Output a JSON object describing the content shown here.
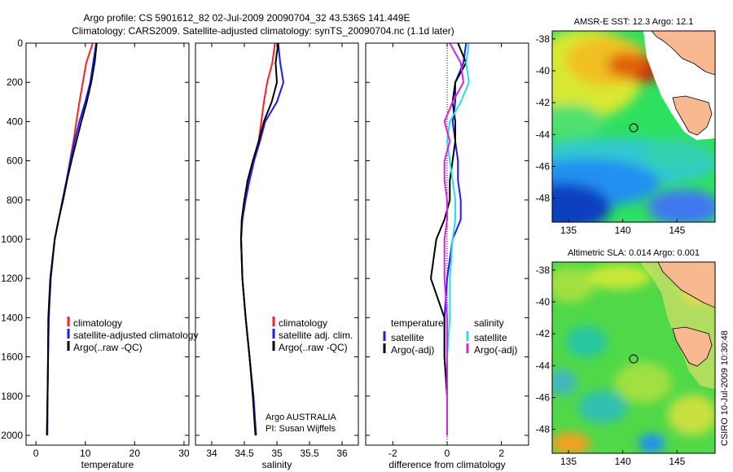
{
  "title_line1": "Argo profile: CS 5901612_82 02-Jul-2009 20090704_32 43.536S 141.449E",
  "title_line2": "Climatology: CARS2009. Satellite-adjusted climatology: synTS_20090704.nc (1.1d later)",
  "credit": "CSIRO 10-Jul-2009 10:30:48",
  "colors": {
    "climatology": "#ff2020",
    "satellite": "#1a1aff",
    "argo": "#000000",
    "cyan": "#22e0f0",
    "magenta": "#e020e0",
    "land": "#f8b990"
  },
  "chart_data": [
    {
      "type": "line",
      "xlabel": "temperature",
      "xlim": [
        -2,
        31
      ],
      "xticks": [
        0,
        10,
        20,
        30
      ],
      "ylim": [
        2050,
        0
      ],
      "yticks": [
        0,
        200,
        400,
        600,
        800,
        1000,
        1200,
        1400,
        1600,
        1800,
        2000
      ],
      "legend": {
        "position": "lower-right",
        "entries": [
          "climatology",
          "satellite-adjusted climatology",
          "Argo(..raw -QC)"
        ]
      },
      "series": [
        {
          "name": "climatology",
          "color": "#ff2020",
          "x": [
            11.5,
            10.2,
            9.5,
            8.8,
            8.2,
            7.6,
            6.9,
            6.2,
            5.4,
            4.6,
            3.8,
            3.0,
            2.6,
            2.4,
            2.3
          ],
          "y": [
            0,
            100,
            200,
            300,
            400,
            500,
            600,
            700,
            800,
            900,
            1000,
            1200,
            1400,
            1700,
            2000
          ]
        },
        {
          "name": "satellite-adjusted climatology",
          "color": "#1a1aff",
          "x": [
            12.2,
            11.6,
            11.0,
            10.0,
            8.8,
            7.8,
            7.0,
            6.2,
            5.4,
            4.6,
            3.8,
            3.0,
            2.6,
            2.4,
            2.3
          ],
          "y": [
            0,
            100,
            200,
            300,
            400,
            500,
            600,
            700,
            800,
            900,
            1000,
            1200,
            1400,
            1700,
            2000
          ]
        },
        {
          "name": "Argo(..raw -QC)",
          "color": "#000000",
          "x": [
            12.3,
            11.9,
            11.2,
            10.3,
            9.2,
            8.2,
            7.2,
            6.3,
            5.5,
            4.6,
            3.8,
            2.9,
            2.5,
            2.4,
            2.2
          ],
          "y": [
            0,
            100,
            200,
            300,
            400,
            500,
            600,
            700,
            800,
            900,
            1000,
            1200,
            1400,
            1700,
            2000
          ]
        }
      ]
    },
    {
      "type": "line",
      "xlabel": "salinity",
      "xlim": [
        33.75,
        36.25
      ],
      "xticks": [
        34,
        34.5,
        35,
        35.5,
        36
      ],
      "ylim": [
        2050,
        0
      ],
      "legend": {
        "position": "lower-right",
        "entries": [
          "climatology",
          "satellite adj. clim.",
          "Argo(..raw -QC)"
        ]
      },
      "annotations": [
        "Argo AUSTRALIA",
        "PI: Susan Wijffels"
      ],
      "series": [
        {
          "name": "climatology",
          "color": "#ff2020",
          "x": [
            34.97,
            34.93,
            34.85,
            34.8,
            34.76,
            34.72,
            34.64,
            34.57,
            34.5,
            34.46,
            34.45,
            34.47,
            34.52,
            34.58,
            34.64,
            34.68
          ],
          "y": [
            0,
            100,
            200,
            300,
            400,
            500,
            600,
            700,
            800,
            900,
            1000,
            1200,
            1400,
            1600,
            1800,
            2000
          ]
        },
        {
          "name": "satellite adj. clim.",
          "color": "#1a1aff",
          "x": [
            35.02,
            35.05,
            35.1,
            35.0,
            34.82,
            34.74,
            34.65,
            34.58,
            34.52,
            34.47,
            34.45,
            34.47,
            34.52,
            34.58,
            34.64,
            34.68
          ],
          "y": [
            0,
            100,
            200,
            300,
            400,
            500,
            600,
            700,
            800,
            900,
            1000,
            1200,
            1400,
            1600,
            1800,
            2000
          ]
        },
        {
          "name": "Argo(..raw -QC)",
          "color": "#000000",
          "x": [
            35.02,
            34.98,
            35.0,
            34.92,
            34.8,
            34.72,
            34.63,
            34.55,
            34.5,
            34.46,
            34.45,
            34.47,
            34.52,
            34.58,
            34.63,
            34.67
          ],
          "y": [
            0,
            100,
            200,
            300,
            400,
            500,
            600,
            700,
            800,
            900,
            1000,
            1200,
            1400,
            1600,
            1800,
            2000
          ]
        }
      ]
    },
    {
      "type": "line",
      "xlabel": "difference from climatology",
      "xlim": [
        -3,
        3
      ],
      "xticks": [
        -2,
        0,
        2
      ],
      "ylim": [
        2050,
        0
      ],
      "legend": {
        "position": "lower-center",
        "columns": [
          {
            "header": "temperature",
            "entries": [
              "satellite",
              "Argo(-adj)"
            ]
          },
          {
            "header": "salinity",
            "entries": [
              "satellite",
              "Argo(-adj)"
            ]
          }
        ]
      },
      "series": [
        {
          "name": "temperature satellite",
          "color": "#1a1aff",
          "x": [
            0.7,
            0.6,
            0.3,
            0.3,
            0.2,
            0.3,
            0.4,
            0.4,
            0.5,
            0.5,
            0.2,
            0.0,
            -0.1,
            -0.1,
            0.0,
            0.0
          ],
          "y": [
            0,
            100,
            200,
            300,
            400,
            500,
            600,
            700,
            800,
            900,
            1000,
            1200,
            1400,
            1600,
            1800,
            2000
          ]
        },
        {
          "name": "temperature Argo(-adj)",
          "color": "#000000",
          "x": [
            0.4,
            0.7,
            0.3,
            0.2,
            0.3,
            0.3,
            0.2,
            0.1,
            0.1,
            -0.1,
            -0.4,
            -0.6,
            -0.1,
            -0.1,
            0.0,
            0.0
          ],
          "y": [
            0,
            100,
            200,
            300,
            400,
            500,
            600,
            700,
            800,
            900,
            1000,
            1200,
            1400,
            1600,
            1800,
            2000
          ]
        },
        {
          "name": "salinity satellite",
          "color": "#22e0f0",
          "x": [
            0.8,
            0.7,
            0.8,
            0.5,
            0.1,
            0.0,
            0.1,
            0.2,
            0.3,
            0.3,
            0.2,
            0.1,
            0.1,
            0.0,
            0.0,
            0.0
          ],
          "y": [
            0,
            100,
            200,
            300,
            400,
            500,
            600,
            700,
            800,
            900,
            1000,
            1200,
            1400,
            1600,
            1800,
            2000
          ]
        },
        {
          "name": "salinity Argo(-adj)",
          "color": "#e020e0",
          "x": [
            0.1,
            0.5,
            0.6,
            0.2,
            -0.1,
            0.1,
            -0.1,
            -0.1,
            0.0,
            0.0,
            -0.1,
            -0.1,
            0.0,
            0.0,
            0.0,
            0.0
          ],
          "y": [
            0,
            100,
            200,
            300,
            400,
            500,
            600,
            700,
            800,
            900,
            1000,
            1200,
            1400,
            1600,
            1800,
            2000
          ]
        }
      ]
    },
    {
      "type": "heatmap",
      "title": "AMSR-E SST: 12.3 Argo: 12.1",
      "xlim": [
        133.5,
        148.5
      ],
      "xticks": [
        135,
        140,
        145
      ],
      "ylim": [
        -49.5,
        -37.5
      ],
      "yticks": [
        -38,
        -40,
        -42,
        -44,
        -46,
        -48
      ],
      "marker": {
        "lon": 141.449,
        "lat": -43.536
      }
    },
    {
      "type": "heatmap",
      "title": "Altimetric SLA: 0.014 Argo: 0.001",
      "xlim": [
        133.5,
        148.5
      ],
      "xticks": [
        135,
        140,
        145
      ],
      "ylim": [
        -49.5,
        -37.5
      ],
      "yticks": [
        -38,
        -40,
        -42,
        -44,
        -46,
        -48
      ],
      "marker": {
        "lon": 141.449,
        "lat": -43.536
      }
    }
  ]
}
